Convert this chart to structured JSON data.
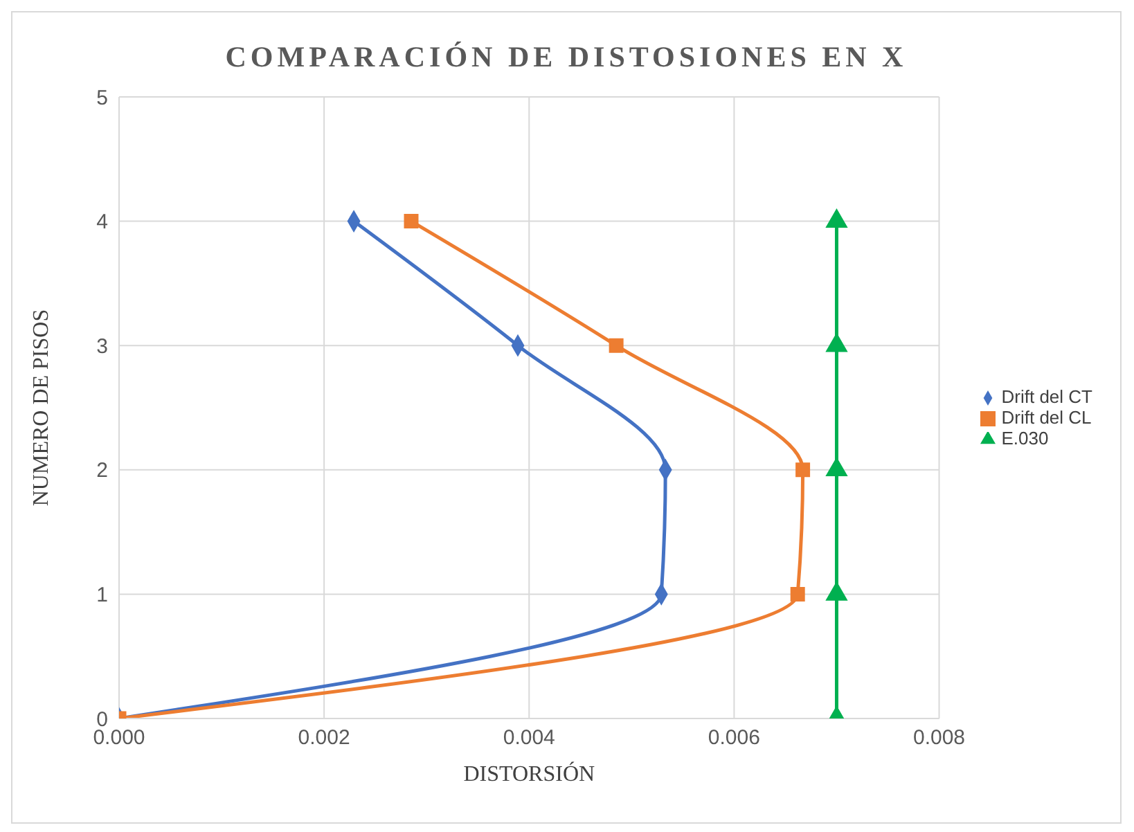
{
  "chart_data": {
    "type": "line",
    "title": "COMPARACIÓN DE DISTOSIONES EN X",
    "xlabel": "DISTORSIÓN",
    "ylabel": "NUMERO DE PISOS",
    "xlim": [
      0,
      0.008
    ],
    "xticks": [
      {
        "value": 0,
        "label": "0.000"
      },
      {
        "value": 0.002,
        "label": "0.002"
      },
      {
        "value": 0.004,
        "label": "0.004"
      },
      {
        "value": 0.006,
        "label": "0.006"
      },
      {
        "value": 0.008,
        "label": "0.008"
      }
    ],
    "ylim": [
      0,
      5
    ],
    "yticks": [
      0,
      1,
      2,
      3,
      4,
      5
    ],
    "grid": true,
    "legend": "right",
    "series": [
      {
        "name": "Drift del CT",
        "color": "#4472c4",
        "marker": "diamond",
        "x": [
          0,
          0.00529,
          0.00533,
          0.00389,
          0.00229
        ],
        "values": [
          0,
          1,
          2,
          3,
          4
        ]
      },
      {
        "name": "Drift del CL",
        "color": "#ed7d31",
        "marker": "square",
        "x": [
          0,
          0.00662,
          0.00667,
          0.00485,
          0.00285
        ],
        "values": [
          0,
          1,
          2,
          3,
          4
        ]
      },
      {
        "name": "E.030",
        "color": "#00b050",
        "marker": "triangle",
        "x": [
          0.007,
          0.007,
          0.007,
          0.007,
          0.007
        ],
        "values": [
          0,
          1,
          2,
          3,
          4
        ]
      }
    ]
  }
}
